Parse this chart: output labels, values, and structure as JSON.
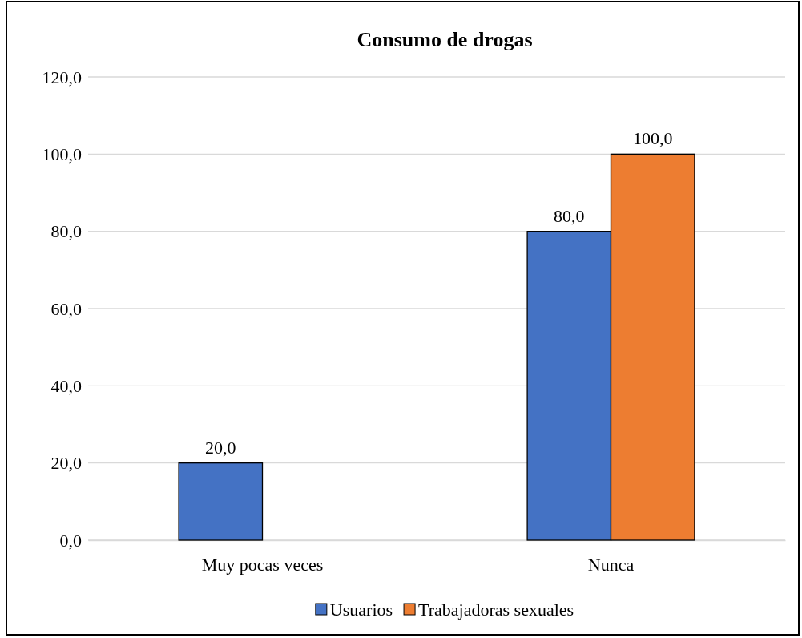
{
  "chart_data": {
    "type": "bar",
    "title": "Consumo de drogas",
    "categories": [
      "Muy pocas veces",
      "Nunca"
    ],
    "series": [
      {
        "name": "Usuarios",
        "color": "#4472c4",
        "values": [
          20,
          80
        ],
        "value_labels": [
          "20,0",
          "80,0"
        ]
      },
      {
        "name": "Trabajadoras sexuales",
        "color": "#ed7d31",
        "values": [
          null,
          100
        ],
        "value_labels": [
          null,
          "100,0"
        ]
      }
    ],
    "ylim": [
      0,
      120
    ],
    "yticks": [
      {
        "value": 0,
        "label": "0,0"
      },
      {
        "value": 20,
        "label": "20,0"
      },
      {
        "value": 40,
        "label": "40,0"
      },
      {
        "value": 60,
        "label": "60,0"
      },
      {
        "value": 80,
        "label": "80,0"
      },
      {
        "value": 100,
        "label": "100,0"
      },
      {
        "value": 120,
        "label": "120,0"
      }
    ],
    "grid": "y",
    "legend": "bottom"
  }
}
